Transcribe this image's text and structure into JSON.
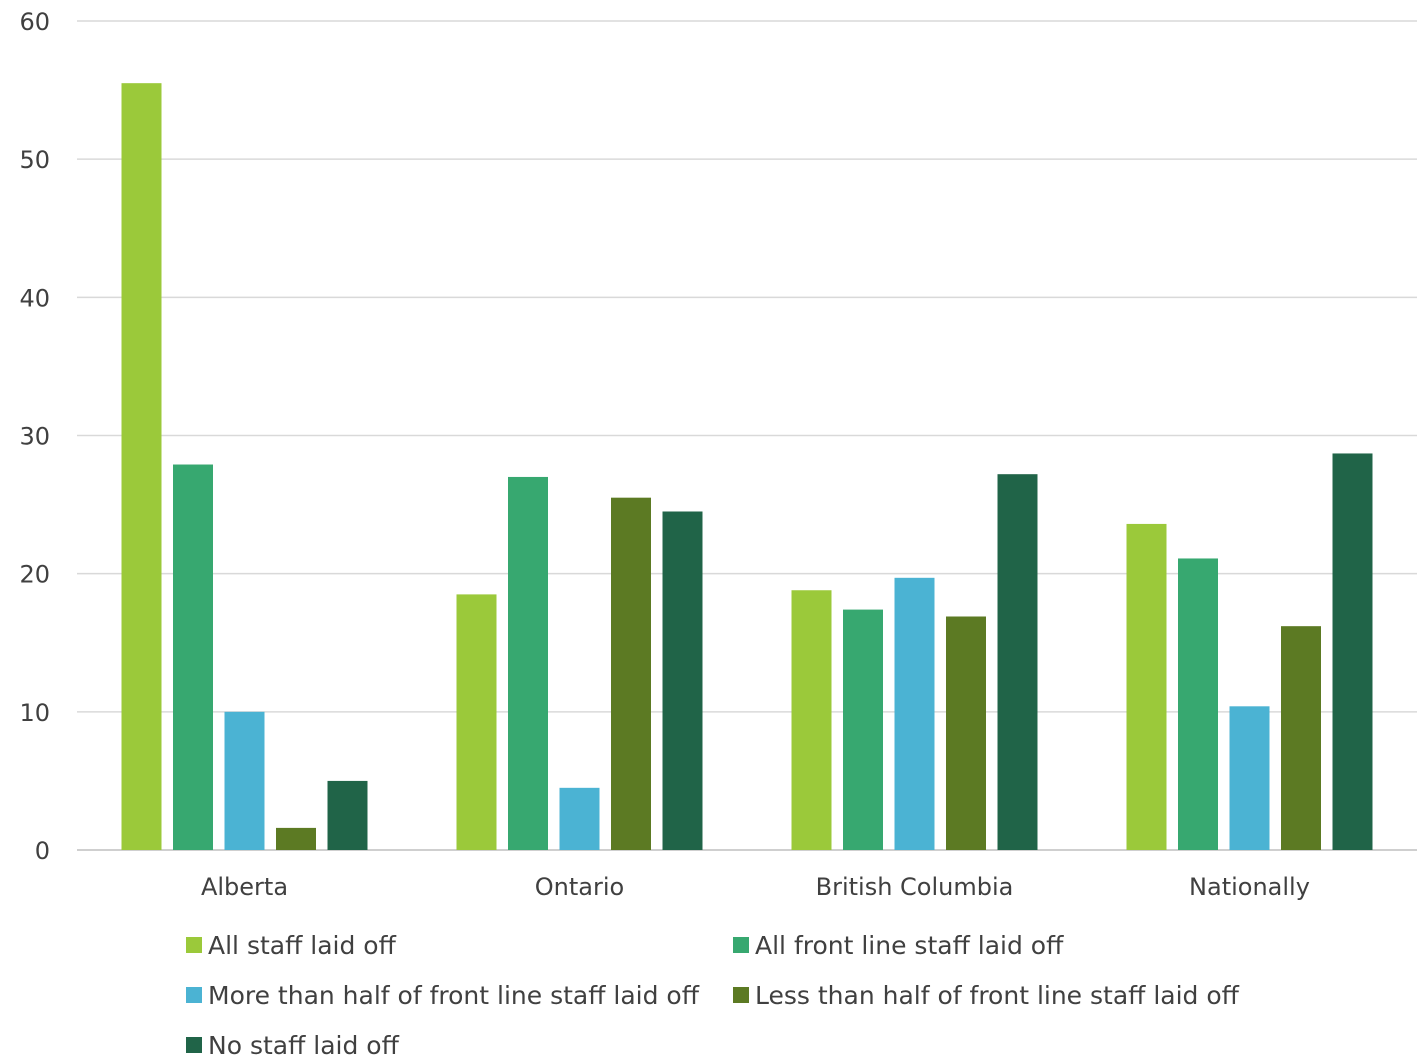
{
  "chart_data": {
    "type": "bar",
    "title": "",
    "xlabel": "",
    "ylabel": "",
    "ylim": [
      0,
      60
    ],
    "yticks": [
      0,
      10,
      20,
      30,
      40,
      50,
      60
    ],
    "grid": true,
    "legend_position": "bottom",
    "categories": [
      "Alberta",
      "Ontario",
      "British Columbia",
      "Nationally"
    ],
    "series": [
      {
        "name": "All staff laid off",
        "color": "#9bc93a",
        "values": [
          55.5,
          18.5,
          18.8,
          23.6
        ]
      },
      {
        "name": "All front line staff laid off",
        "color": "#37a870",
        "values": [
          27.9,
          27.0,
          17.4,
          21.1
        ]
      },
      {
        "name": "More than half of front line staff laid off",
        "color": "#4bb3d3",
        "values": [
          10.0,
          4.5,
          19.7,
          10.4
        ]
      },
      {
        "name": "Less than half of front line staff laid off",
        "color": "#5c7a23",
        "values": [
          1.6,
          25.5,
          16.9,
          16.2
        ]
      },
      {
        "name": "No staff laid off",
        "color": "#206448",
        "values": [
          5.0,
          24.5,
          27.2,
          28.7
        ]
      }
    ]
  }
}
